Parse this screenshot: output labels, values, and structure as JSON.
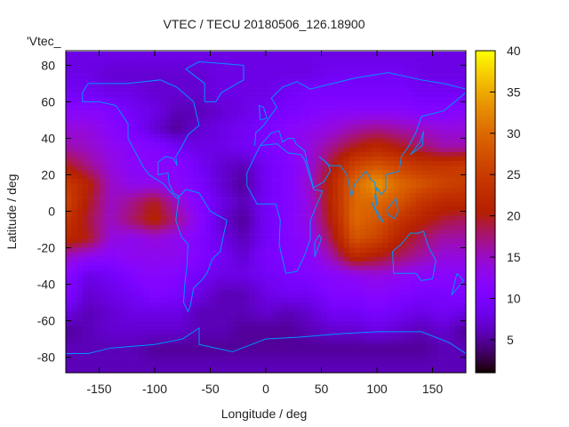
{
  "chart_data": {
    "type": "heatmap",
    "title": "VTEC / TECU 20180506_126.18900",
    "xlabel": "Longitude / deg",
    "ylabel": "Latitude / deg",
    "key_label": "'Vtec_",
    "xlim": [
      -180,
      180
    ],
    "ylim": [
      -88.5,
      88
    ],
    "xticks": [
      -150,
      -100,
      -50,
      0,
      50,
      100,
      150
    ],
    "yticks": [
      -80,
      -60,
      -40,
      -20,
      0,
      20,
      40,
      60,
      80
    ],
    "colorbar": {
      "range": [
        1,
        40
      ],
      "ticks": [
        5,
        10,
        15,
        20,
        25,
        30,
        35,
        40
      ]
    },
    "grid_lon": [
      -180,
      -160,
      -140,
      -120,
      -100,
      -80,
      -60,
      -40,
      -20,
      0,
      20,
      40,
      60,
      80,
      100,
      120,
      140,
      160,
      180
    ],
    "grid_lat": [
      85,
      75,
      65,
      55,
      45,
      35,
      25,
      15,
      5,
      -5,
      -15,
      -25,
      -35,
      -45,
      -55,
      -65,
      -75,
      -85
    ],
    "values": [
      [
        8,
        8,
        8,
        8,
        8,
        8,
        8,
        8,
        8,
        8,
        8,
        8,
        8,
        8,
        8,
        8,
        8,
        8,
        8
      ],
      [
        8,
        8,
        7,
        7,
        7,
        7,
        7,
        8,
        8,
        8,
        8,
        8,
        9,
        9,
        9,
        9,
        8,
        8,
        8
      ],
      [
        9,
        9,
        8,
        8,
        7,
        7,
        7,
        8,
        8,
        8,
        9,
        10,
        10,
        10,
        10,
        10,
        9,
        9,
        9
      ],
      [
        12,
        12,
        11,
        9,
        8,
        6,
        6,
        7,
        8,
        9,
        10,
        11,
        12,
        12,
        12,
        12,
        11,
        11,
        12
      ],
      [
        14,
        14,
        12,
        10,
        7,
        5,
        7,
        8,
        9,
        10,
        12,
        13,
        14,
        16,
        17,
        16,
        15,
        14,
        14
      ],
      [
        16,
        15,
        13,
        12,
        11,
        9,
        8,
        8,
        9,
        10,
        12,
        14,
        17,
        20,
        22,
        20,
        18,
        16,
        16
      ],
      [
        20,
        17,
        14,
        12,
        12,
        12,
        9,
        7,
        6,
        9,
        11,
        14,
        20,
        26,
        28,
        26,
        24,
        24,
        25
      ],
      [
        25,
        21,
        15,
        13,
        13,
        12,
        10,
        7,
        5,
        9,
        11,
        15,
        22,
        30,
        34,
        30,
        28,
        26,
        25
      ],
      [
        26,
        20,
        15,
        17,
        20,
        15,
        11,
        8,
        6,
        9,
        11,
        14,
        22,
        30,
        30,
        28,
        24,
        22,
        22
      ],
      [
        24,
        19,
        15,
        18,
        21,
        17,
        12,
        7,
        5,
        9,
        11,
        14,
        21,
        30,
        28,
        24,
        21,
        19,
        18
      ],
      [
        22,
        20,
        14,
        13,
        14,
        13,
        11,
        8,
        6,
        9,
        11,
        13,
        19,
        28,
        26,
        21,
        18,
        16,
        16
      ],
      [
        15,
        13,
        12,
        13,
        13,
        13,
        11,
        9,
        7,
        10,
        11,
        12,
        16,
        22,
        20,
        18,
        16,
        14,
        14
      ],
      [
        12,
        8,
        9,
        11,
        12,
        11,
        9,
        8,
        8,
        9,
        10,
        11,
        12,
        13,
        14,
        13,
        12,
        12,
        12
      ],
      [
        11,
        7,
        8,
        9,
        11,
        10,
        8,
        6,
        6,
        8,
        9,
        9,
        11,
        11,
        12,
        11,
        10,
        10,
        11
      ],
      [
        8,
        6,
        7,
        8,
        8,
        8,
        6,
        6,
        6,
        7,
        6,
        7,
        9,
        9,
        10,
        9,
        8,
        9,
        8
      ],
      [
        5,
        6,
        7,
        7,
        7,
        7,
        6,
        6,
        5,
        5,
        5,
        6,
        7,
        7,
        8,
        7,
        6,
        7,
        5
      ],
      [
        6,
        6,
        6,
        6,
        5,
        5,
        5,
        5,
        5,
        5,
        5,
        5,
        5,
        5,
        5,
        5,
        5,
        6,
        6
      ],
      [
        6,
        6,
        6,
        6,
        6,
        6,
        6,
        6,
        6,
        6,
        6,
        6,
        6,
        6,
        6,
        6,
        6,
        6,
        6
      ]
    ],
    "coastlines": [
      [
        [
          -165,
          65
        ],
        [
          -160,
          70
        ],
        [
          -140,
          70
        ],
        [
          -125,
          70
        ],
        [
          -95,
          72
        ],
        [
          -80,
          68
        ],
        [
          -65,
          60
        ],
        [
          -60,
          47
        ],
        [
          -70,
          42
        ],
        [
          -76,
          35
        ],
        [
          -81,
          30
        ],
        [
          -80,
          25
        ],
        [
          -83,
          29
        ],
        [
          -90,
          30
        ],
        [
          -97,
          27
        ],
        [
          -97,
          20
        ],
        [
          -88,
          21
        ],
        [
          -87,
          15
        ],
        [
          -83,
          10
        ],
        [
          -78,
          8
        ],
        [
          -80,
          7
        ],
        [
          -85,
          10
        ],
        [
          -92,
          15
        ],
        [
          -105,
          20
        ],
        [
          -110,
          24
        ],
        [
          -117,
          32
        ],
        [
          -124,
          40
        ],
        [
          -124,
          48
        ],
        [
          -135,
          58
        ],
        [
          -150,
          60
        ],
        [
          -165,
          60
        ],
        [
          -165,
          65
        ]
      ],
      [
        [
          -78,
          8
        ],
        [
          -72,
          12
        ],
        [
          -60,
          10
        ],
        [
          -50,
          0
        ],
        [
          -35,
          -5
        ],
        [
          -38,
          -13
        ],
        [
          -41,
          -22
        ],
        [
          -48,
          -26
        ],
        [
          -53,
          -34
        ],
        [
          -58,
          -38
        ],
        [
          -65,
          -42
        ],
        [
          -68,
          -52
        ],
        [
          -70,
          -55
        ],
        [
          -74,
          -50
        ],
        [
          -73,
          -40
        ],
        [
          -71,
          -30
        ],
        [
          -70,
          -18
        ],
        [
          -76,
          -14
        ],
        [
          -81,
          -5
        ],
        [
          -80,
          0
        ],
        [
          -78,
          8
        ]
      ],
      [
        [
          -55,
          60
        ],
        [
          -45,
          60
        ],
        [
          -40,
          65
        ],
        [
          -20,
          72
        ],
        [
          -20,
          80
        ],
        [
          -60,
          82
        ],
        [
          -72,
          78
        ],
        [
          -55,
          70
        ],
        [
          -55,
          60
        ]
      ],
      [
        [
          -17,
          21
        ],
        [
          -10,
          30
        ],
        [
          -5,
          36
        ],
        [
          10,
          37
        ],
        [
          20,
          32
        ],
        [
          32,
          31
        ],
        [
          35,
          28
        ],
        [
          43,
          12
        ],
        [
          51,
          11
        ],
        [
          40,
          -5
        ],
        [
          40,
          -15
        ],
        [
          35,
          -24
        ],
        [
          28,
          -33
        ],
        [
          18,
          -34
        ],
        [
          12,
          -18
        ],
        [
          13,
          -5
        ],
        [
          9,
          4
        ],
        [
          -8,
          4
        ],
        [
          -17,
          14
        ],
        [
          -17,
          21
        ]
      ],
      [
        [
          -10,
          36
        ],
        [
          -9,
          43
        ],
        [
          -2,
          47
        ],
        [
          5,
          53
        ],
        [
          10,
          57
        ],
        [
          5,
          62
        ],
        [
          15,
          68
        ],
        [
          28,
          71
        ],
        [
          40,
          67
        ],
        [
          60,
          70
        ],
        [
          80,
          73
        ],
        [
          110,
          76
        ],
        [
          140,
          72
        ],
        [
          160,
          70
        ],
        [
          180,
          67
        ]
      ],
      [
        [
          180,
          65
        ],
        [
          170,
          60
        ],
        [
          160,
          55
        ],
        [
          140,
          52
        ],
        [
          135,
          43
        ],
        [
          128,
          35
        ],
        [
          122,
          30
        ],
        [
          120,
          22
        ],
        [
          108,
          20
        ],
        [
          108,
          12
        ],
        [
          104,
          9
        ],
        [
          100,
          13
        ],
        [
          98,
          8
        ],
        [
          100,
          3
        ],
        [
          98,
          16
        ],
        [
          95,
          17
        ],
        [
          90,
          22
        ],
        [
          80,
          15
        ],
        [
          77,
          8
        ],
        [
          73,
          20
        ],
        [
          67,
          25
        ],
        [
          57,
          25
        ],
        [
          52,
          28
        ],
        [
          48,
          30
        ],
        [
          56,
          26
        ],
        [
          58,
          22
        ],
        [
          52,
          16
        ],
        [
          43,
          13
        ],
        [
          37,
          27
        ],
        [
          35,
          33
        ],
        [
          27,
          37
        ],
        [
          25,
          40
        ],
        [
          20,
          40
        ],
        [
          15,
          38
        ],
        [
          12,
          44
        ],
        [
          5,
          43
        ],
        [
          -5,
          36
        ]
      ],
      [
        [
          114,
          -22
        ],
        [
          122,
          -18
        ],
        [
          130,
          -12
        ],
        [
          137,
          -12
        ],
        [
          142,
          -11
        ],
        [
          146,
          -19
        ],
        [
          153,
          -27
        ],
        [
          150,
          -37
        ],
        [
          140,
          -38
        ],
        [
          135,
          -34
        ],
        [
          115,
          -34
        ],
        [
          114,
          -22
        ]
      ],
      [
        [
          -180,
          -78
        ],
        [
          -160,
          -78
        ],
        [
          -140,
          -75
        ],
        [
          -100,
          -73
        ],
        [
          -75,
          -70
        ],
        [
          -60,
          -64
        ],
        [
          -60,
          -73
        ],
        [
          -30,
          -77
        ],
        [
          0,
          -70
        ],
        [
          30,
          -69
        ],
        [
          70,
          -67
        ],
        [
          100,
          -66
        ],
        [
          140,
          -66
        ],
        [
          165,
          -72
        ],
        [
          180,
          -78
        ]
      ],
      [
        [
          109,
          1
        ],
        [
          117,
          7
        ],
        [
          119,
          0
        ],
        [
          116,
          -4
        ],
        [
          110,
          -2
        ],
        [
          109,
          1
        ]
      ],
      [
        [
          95,
          5
        ],
        [
          106,
          -6
        ],
        [
          102,
          -4
        ],
        [
          95,
          5
        ]
      ],
      [
        [
          44,
          -25
        ],
        [
          50,
          -15
        ],
        [
          48,
          -13
        ],
        [
          44,
          -17
        ],
        [
          44,
          -25
        ]
      ],
      [
        [
          130,
          31
        ],
        [
          141,
          36
        ],
        [
          142,
          44
        ],
        [
          139,
          38
        ],
        [
          130,
          31
        ]
      ],
      [
        [
          -5,
          50
        ],
        [
          1,
          51
        ],
        [
          -2,
          57
        ],
        [
          -6,
          58
        ],
        [
          -5,
          50
        ]
      ],
      [
        [
          172,
          -34
        ],
        [
          178,
          -38
        ],
        [
          167,
          -46
        ],
        [
          172,
          -34
        ]
      ]
    ],
    "coast_color": "#0094ff"
  }
}
